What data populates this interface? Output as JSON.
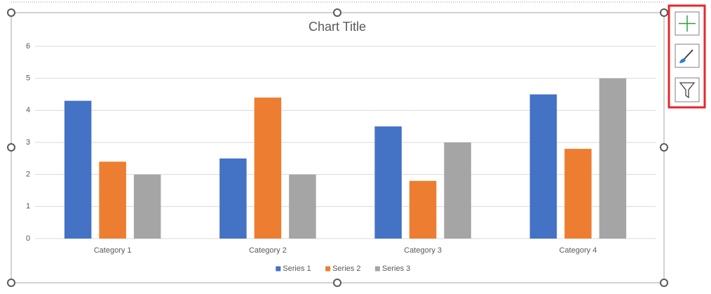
{
  "chart_data": {
    "type": "bar",
    "title": "Chart Title",
    "categories": [
      "Category 1",
      "Category 2",
      "Category 3",
      "Category 4"
    ],
    "series": [
      {
        "name": "Series 1",
        "color": "#4472c4",
        "values": [
          4.3,
          2.5,
          3.5,
          4.5
        ]
      },
      {
        "name": "Series 2",
        "color": "#ed7d31",
        "values": [
          2.4,
          4.4,
          1.8,
          2.8
        ]
      },
      {
        "name": "Series 3",
        "color": "#a5a5a5",
        "values": [
          2,
          2,
          3,
          5
        ]
      }
    ],
    "ylim": [
      0,
      6
    ],
    "yticks": [
      0,
      1,
      2,
      3,
      4,
      5,
      6
    ],
    "grid": true,
    "legend": "bottom"
  }
}
